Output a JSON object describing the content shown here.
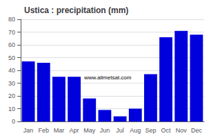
{
  "chart_data": {
    "type": "bar",
    "title": "Ustica : precipitation (mm)",
    "categories": [
      "Jan",
      "Feb",
      "Mar",
      "Apr",
      "May",
      "Jun",
      "Jul",
      "Aug",
      "Sep",
      "Oct",
      "Nov",
      "Dec"
    ],
    "values": [
      47,
      46,
      35,
      35,
      18,
      9,
      4,
      10,
      37,
      66,
      71,
      68
    ],
    "color": "#0000dd",
    "ylim": [
      0,
      80
    ],
    "yticks": [
      0,
      10,
      20,
      30,
      40,
      50,
      60,
      70,
      80
    ],
    "grid": true,
    "annotations": [
      "www.allmetsat.com"
    ]
  }
}
